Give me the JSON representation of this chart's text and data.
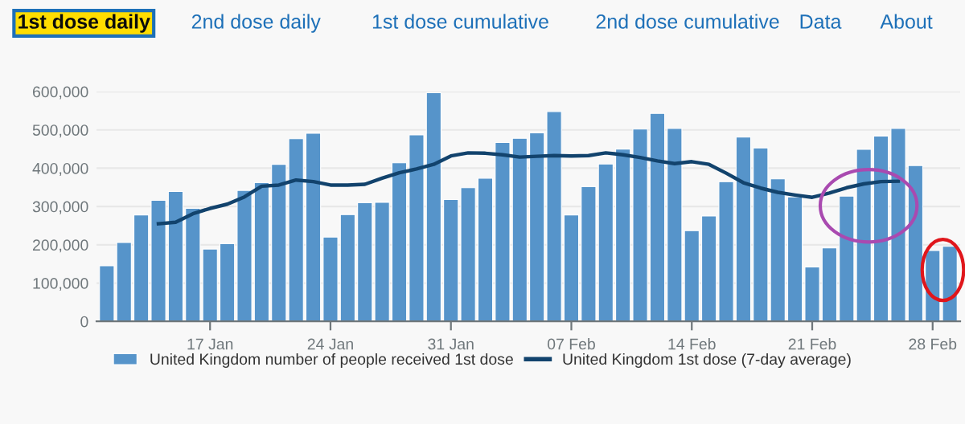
{
  "chart_data": {
    "type": "bar",
    "categories": [
      null,
      null,
      null,
      null,
      null,
      null,
      "17 Jan",
      null,
      null,
      null,
      null,
      null,
      null,
      "24 Jan",
      null,
      null,
      null,
      null,
      null,
      null,
      "31 Jan",
      null,
      null,
      null,
      null,
      null,
      null,
      "07 Feb",
      null,
      null,
      null,
      null,
      null,
      null,
      "14 Feb",
      null,
      null,
      null,
      null,
      null,
      null,
      "21 Feb",
      null,
      null,
      null,
      null,
      null,
      null,
      "28 Feb",
      null
    ],
    "series": [
      {
        "name": "United Kingdom number of people received 1st dose",
        "color": "#5694ca",
        "values": [
          145000,
          206000,
          278000,
          316000,
          339000,
          295000,
          189000,
          203000,
          342000,
          362000,
          410000,
          477000,
          491000,
          220000,
          279000,
          310000,
          311000,
          414000,
          487000,
          597000,
          318000,
          349000,
          374000,
          467000,
          478000,
          492000,
          548000,
          278000,
          352000,
          411000,
          450000,
          502000,
          543000,
          504000,
          237000,
          275000,
          365000,
          481000,
          453000,
          372000,
          325000,
          142000,
          192000,
          327000,
          449000,
          484000,
          504000,
          407000,
          185000,
          196000
        ]
      },
      {
        "name": "United Kingdom 1st dose (7-day average)",
        "type": "line",
        "color": "#12436d",
        "values": [
          null,
          null,
          null,
          255000,
          259000,
          281000,
          295000,
          306000,
          325000,
          353000,
          356000,
          369000,
          365000,
          356000,
          356000,
          358000,
          374000,
          388000,
          398000,
          410000,
          432000,
          440000,
          439000,
          435000,
          429000,
          431000,
          433000,
          432000,
          433000,
          440000,
          435000,
          428000,
          419000,
          412000,
          417000,
          410000,
          387000,
          362000,
          348000,
          337000,
          330000,
          324000,
          335000,
          349000,
          359000,
          365000,
          366000,
          null,
          null,
          null
        ]
      }
    ],
    "ylim": [
      0,
      600000
    ],
    "yticks": [
      0,
      {
        "value": 100000,
        "label": "100,000"
      },
      {
        "value": 200000,
        "label": "200,000"
      },
      {
        "value": 300000,
        "label": "300,000"
      },
      {
        "value": 400000,
        "label": "400,000"
      },
      {
        "value": 500000,
        "label": "500,000"
      },
      {
        "value": 600000,
        "label": "600,000"
      }
    ],
    "grid": "y",
    "legend": "bottom",
    "line_style": "solid",
    "marker": "none",
    "annotations": [
      "1st dose daily",
      "2nd dose daily",
      "1st dose cumulative",
      "2nd dose cumulative",
      "Data",
      "About"
    ]
  }
}
